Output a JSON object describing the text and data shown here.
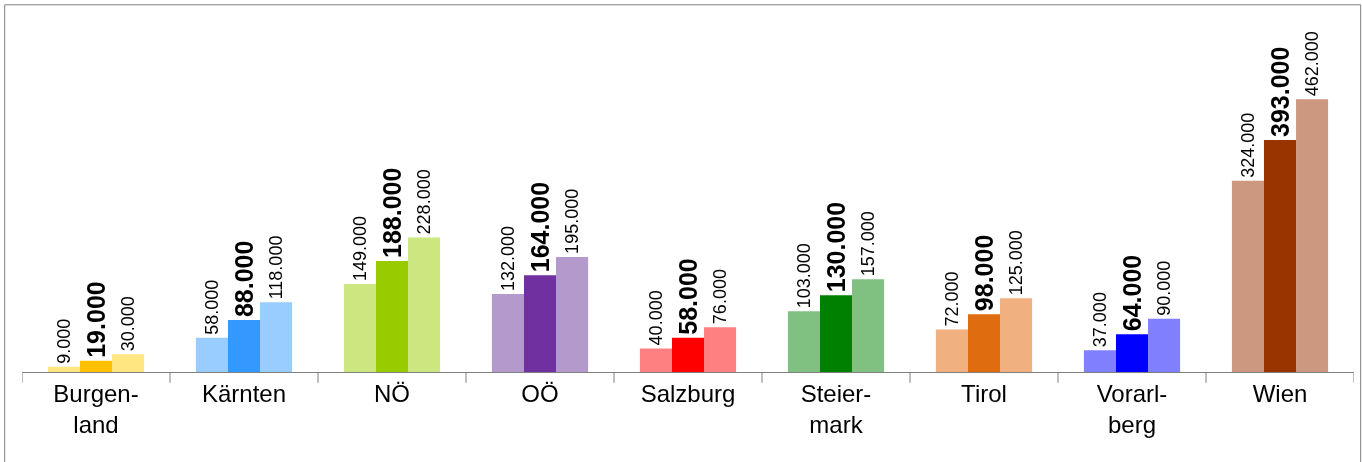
{
  "chart_data": {
    "type": "bar",
    "categories": [
      "Burgen-\nland",
      "Kärnten",
      "NÖ",
      "OÖ",
      "Salzburg",
      "Steier-\nmark",
      "Tirol",
      "Vorarl-\nberg",
      "Wien"
    ],
    "series": [
      {
        "values": [
          9000,
          58000,
          149000,
          132000,
          40000,
          103000,
          72000,
          37000,
          324000
        ],
        "value_labels": [
          "9.000",
          "58.000",
          "149.000",
          "132.000",
          "40.000",
          "103.000",
          "72.000",
          "37.000",
          "324.000"
        ],
        "colors": [
          "#ffe680",
          "#99ccff",
          "#cce680",
          "#b399cc",
          "#ff8080",
          "#80c080",
          "#f0b080",
          "#8080ff",
          "#cc9980"
        ]
      },
      {
        "values": [
          19000,
          88000,
          188000,
          164000,
          58000,
          130000,
          98000,
          64000,
          393000
        ],
        "value_labels": [
          "19.000",
          "88.000",
          "188.000",
          "164.000",
          "58.000",
          "130.000",
          "98.000",
          "64.000",
          "393.000"
        ],
        "colors": [
          "#ffc000",
          "#3399ff",
          "#99cc00",
          "#7030a0",
          "#ff0000",
          "#008000",
          "#e06c10",
          "#0000ff",
          "#993300"
        ]
      },
      {
        "values": [
          30000,
          118000,
          228000,
          195000,
          76000,
          157000,
          125000,
          90000,
          462000
        ],
        "value_labels": [
          "30.000",
          "118.000",
          "228.000",
          "195.000",
          "76.000",
          "157.000",
          "125.000",
          "90.000",
          "462.000"
        ],
        "colors": [
          "#ffe680",
          "#99ccff",
          "#cce680",
          "#b399cc",
          "#ff8080",
          "#80c080",
          "#f0b080",
          "#8080ff",
          "#cc9980"
        ]
      }
    ]
  }
}
